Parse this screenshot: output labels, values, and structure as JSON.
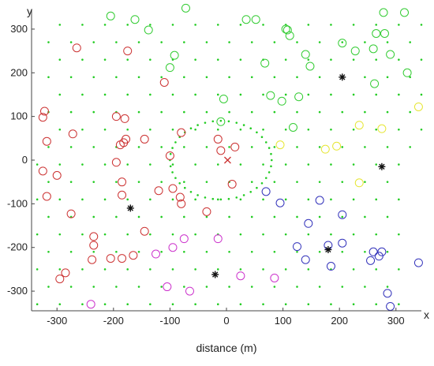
{
  "chart_data": {
    "type": "scatter",
    "title": "",
    "xlabel": "distance (m)",
    "ylabel": "",
    "axis_corner_labels": {
      "x": "x",
      "y": "y"
    },
    "xlim": [
      -345,
      345
    ],
    "ylim": [
      -345,
      345
    ],
    "xticks": [
      -300,
      -200,
      -100,
      0,
      100,
      200,
      300
    ],
    "yticks": [
      -300,
      -200,
      -100,
      0,
      100,
      200,
      300
    ],
    "grid": false,
    "legend": "none",
    "series": [
      {
        "color": "#cc3333",
        "marker": "circle",
        "points": [
          [
            -322,
            112
          ],
          [
            -325,
            98
          ],
          [
            -318,
            43
          ],
          [
            -325,
            -25
          ],
          [
            -318,
            -83
          ],
          [
            -300,
            -35
          ],
          [
            -272,
            60
          ],
          [
            -275,
            -123
          ],
          [
            -265,
            257
          ],
          [
            -175,
            250
          ],
          [
            -195,
            100
          ],
          [
            -180,
            95
          ],
          [
            -195,
            -5
          ],
          [
            -185,
            -50
          ],
          [
            -185,
            -80
          ],
          [
            -182,
            40
          ],
          [
            -178,
            48
          ],
          [
            -188,
            35
          ],
          [
            -145,
            48
          ],
          [
            -110,
            178
          ],
          [
            -100,
            10
          ],
          [
            -120,
            -70
          ],
          [
            -95,
            -65
          ],
          [
            -82,
            -85
          ],
          [
            -80,
            -100
          ],
          [
            -80,
            63
          ],
          [
            -35,
            -118
          ],
          [
            -15,
            48
          ],
          [
            -10,
            22
          ],
          [
            15,
            30
          ],
          [
            10,
            -55
          ],
          [
            -235,
            -175
          ],
          [
            -235,
            -195
          ],
          [
            -238,
            -228
          ],
          [
            -205,
            -225
          ],
          [
            -185,
            -225
          ],
          [
            -165,
            -218
          ],
          [
            -145,
            -163
          ],
          [
            -295,
            -272
          ],
          [
            -285,
            -258
          ]
        ]
      },
      {
        "color": "#cc3333",
        "marker": "x",
        "points": [
          [
            2,
            0
          ]
        ]
      },
      {
        "color": "#33cc33",
        "marker": "circle",
        "points": [
          [
            -72,
            348
          ],
          [
            -205,
            330
          ],
          [
            -162,
            322
          ],
          [
            -138,
            298
          ],
          [
            -92,
            240
          ],
          [
            -100,
            212
          ],
          [
            -5,
            140
          ],
          [
            35,
            322
          ],
          [
            52,
            322
          ],
          [
            68,
            222
          ],
          [
            78,
            148
          ],
          [
            105,
            300
          ],
          [
            108,
            298
          ],
          [
            112,
            285
          ],
          [
            140,
            242
          ],
          [
            128,
            145
          ],
          [
            118,
            75
          ],
          [
            98,
            135
          ],
          [
            148,
            215
          ],
          [
            205,
            268
          ],
          [
            228,
            250
          ],
          [
            265,
            290
          ],
          [
            260,
            255
          ],
          [
            280,
            290
          ],
          [
            290,
            242
          ],
          [
            262,
            175
          ],
          [
            278,
            338
          ],
          [
            315,
            338
          ],
          [
            320,
            200
          ],
          [
            -10,
            88
          ]
        ]
      },
      {
        "color": "#e6e633",
        "marker": "circle",
        "points": [
          [
            235,
            80
          ],
          [
            275,
            72
          ],
          [
            340,
            122
          ],
          [
            175,
            25
          ],
          [
            195,
            32
          ],
          [
            235,
            -52
          ],
          [
            95,
            35
          ]
        ]
      },
      {
        "color": "#3333bb",
        "marker": "circle",
        "points": [
          [
            70,
            -72
          ],
          [
            95,
            -98
          ],
          [
            145,
            -145
          ],
          [
            165,
            -92
          ],
          [
            205,
            -125
          ],
          [
            125,
            -198
          ],
          [
            180,
            -195
          ],
          [
            205,
            -190
          ],
          [
            140,
            -228
          ],
          [
            185,
            -243
          ],
          [
            255,
            -230
          ],
          [
            260,
            -210
          ],
          [
            270,
            -220
          ],
          [
            275,
            -210
          ],
          [
            340,
            -235
          ],
          [
            285,
            -305
          ],
          [
            290,
            -335
          ]
        ]
      },
      {
        "color": "#cc33cc",
        "marker": "circle",
        "points": [
          [
            -125,
            -215
          ],
          [
            -95,
            -200
          ],
          [
            -75,
            -180
          ],
          [
            -15,
            -180
          ],
          [
            -105,
            -290
          ],
          [
            -65,
            -300
          ],
          [
            25,
            -265
          ],
          [
            85,
            -270
          ],
          [
            -240,
            -330
          ]
        ]
      },
      {
        "color": "#111111",
        "marker": "asterisk",
        "points": [
          [
            -170,
            -110
          ],
          [
            -20,
            -262
          ],
          [
            205,
            190
          ],
          [
            275,
            -15
          ],
          [
            180,
            -205
          ]
        ]
      },
      {
        "color": "#22cc22",
        "marker": "dot",
        "points": "grid spacing 40 m plus ring of radius 90 m around (-10,0)"
      }
    ]
  }
}
